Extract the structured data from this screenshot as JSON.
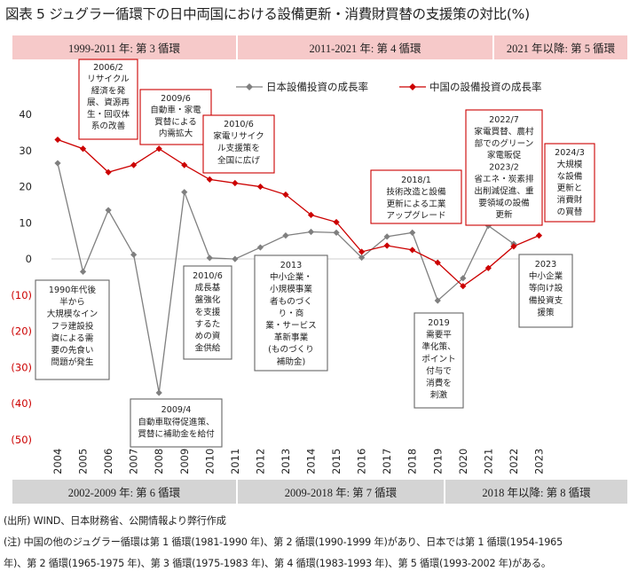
{
  "title": "図表 5  ジュグラー循環下の日中両国における設備更新・消費財買替の支援策の対比(%)",
  "top_bands": [
    {
      "label": "1999-2011 年: 第 3 循環"
    },
    {
      "label": "2011-2021 年: 第 4 循環"
    },
    {
      "label": "2021 年以降: 第 5 循環"
    }
  ],
  "bottom_bands": [
    {
      "label": "2002-2009 年: 第 6 循環"
    },
    {
      "label": "2009-2018 年: 第 7 循環"
    },
    {
      "label": "2018 年以降: 第 8 循環"
    }
  ],
  "colors": {
    "japan": "#7f7f7f",
    "china": "#cc0000",
    "top_band": "#f6c9c9",
    "bottom_band": "#d4d4d4"
  },
  "chart_data": {
    "type": "line",
    "x": [
      "2004",
      "2005",
      "2006",
      "2007",
      "2008",
      "2009",
      "2010",
      "2011",
      "2012",
      "2013",
      "2014",
      "2015",
      "2016",
      "2017",
      "2018",
      "2019",
      "2020",
      "2021",
      "2022",
      "2023"
    ],
    "series": [
      {
        "name": "日本設備投資の成長率",
        "values": [
          26.5,
          -3.5,
          13.5,
          1.2,
          -37,
          18.5,
          0.3,
          0,
          3.2,
          6.5,
          7.5,
          7.3,
          0.4,
          6.2,
          7.3,
          -11.5,
          -5.3,
          9.2,
          4.2,
          null
        ]
      },
      {
        "name": "中国の設備投資の成長率",
        "values": [
          33,
          30.5,
          24,
          26,
          30.5,
          26,
          22,
          21,
          20,
          17.8,
          12.2,
          10.2,
          2,
          3.7,
          2.5,
          -1,
          -7.5,
          -2.5,
          3.5,
          6.5
        ]
      }
    ],
    "y_ticks": [
      "40",
      "30",
      "20",
      "10",
      "0",
      "(10)",
      "(20)",
      "(30)",
      "(40)",
      "(50)"
    ],
    "ylim": [
      -50,
      40
    ],
    "legend_position": "top",
    "annotations": [
      {
        "lines": [
          "2006/2",
          "リサイクル",
          "経済を発",
          "展、資源再",
          "生・回収体",
          "系の改善"
        ]
      },
      {
        "lines": [
          "2009/6",
          "自動車・家電",
          "買替による",
          "内需拡大"
        ]
      },
      {
        "lines": [
          "2010/6",
          "家電リサイク",
          "ル支援策を",
          "全国に広げ"
        ]
      },
      {
        "lines": [
          "2018/1",
          "技術改造と設備",
          "更新による工業",
          "アップグレード"
        ]
      },
      {
        "lines": [
          "2022/7",
          "家電買替、農村",
          "部でのグリーン",
          "家電販促",
          "2023/2",
          "省エネ・炭素排",
          "出削減促進、重",
          "要領域の設備",
          "更新"
        ]
      },
      {
        "lines": [
          "2024/3",
          "大規模",
          "な設備",
          "更新と",
          "消費財",
          "の買替"
        ]
      },
      {
        "lines": [
          "1990年代後",
          "半から",
          "大規模なイン",
          "フラ建設投",
          "資による需",
          "要の先食い",
          "問題が発生"
        ]
      },
      {
        "lines": [
          "2009/4",
          "自動車取得促進策、",
          "買替に補助金を給付"
        ]
      },
      {
        "lines": [
          "2010/6",
          "成長基",
          "盤強化",
          "を支援",
          "するた",
          "めの資",
          "金供給"
        ]
      },
      {
        "lines": [
          "2013",
          "中小企業・",
          "小規模事業",
          "者ものづく",
          "り・商",
          "業・サービス",
          "革新事業",
          "(ものづくり",
          "補助金)"
        ]
      },
      {
        "lines": [
          "2019",
          "需要平",
          "準化策、",
          "ポイント",
          "付与で",
          "消費を",
          "刺激"
        ]
      },
      {
        "lines": [
          "2023",
          "中小企業",
          "等向け設",
          "備投資支",
          "援策"
        ]
      }
    ]
  },
  "notes": [
    "(出所) WIND、日本財務省、公開情報より弊行作成",
    "(注) 中国の他のジュグラー循環は第 1 循環(1981-1990 年)、第 2 循環(1990-1999 年)があり、日本では第 1 循環(1954-1965",
    "年)、第 2 循環(1965-1975 年)、第 3 循環(1975-1983 年)、第 4 循環(1983-1993 年)、第 5 循環(1993-2002 年)がある。"
  ]
}
